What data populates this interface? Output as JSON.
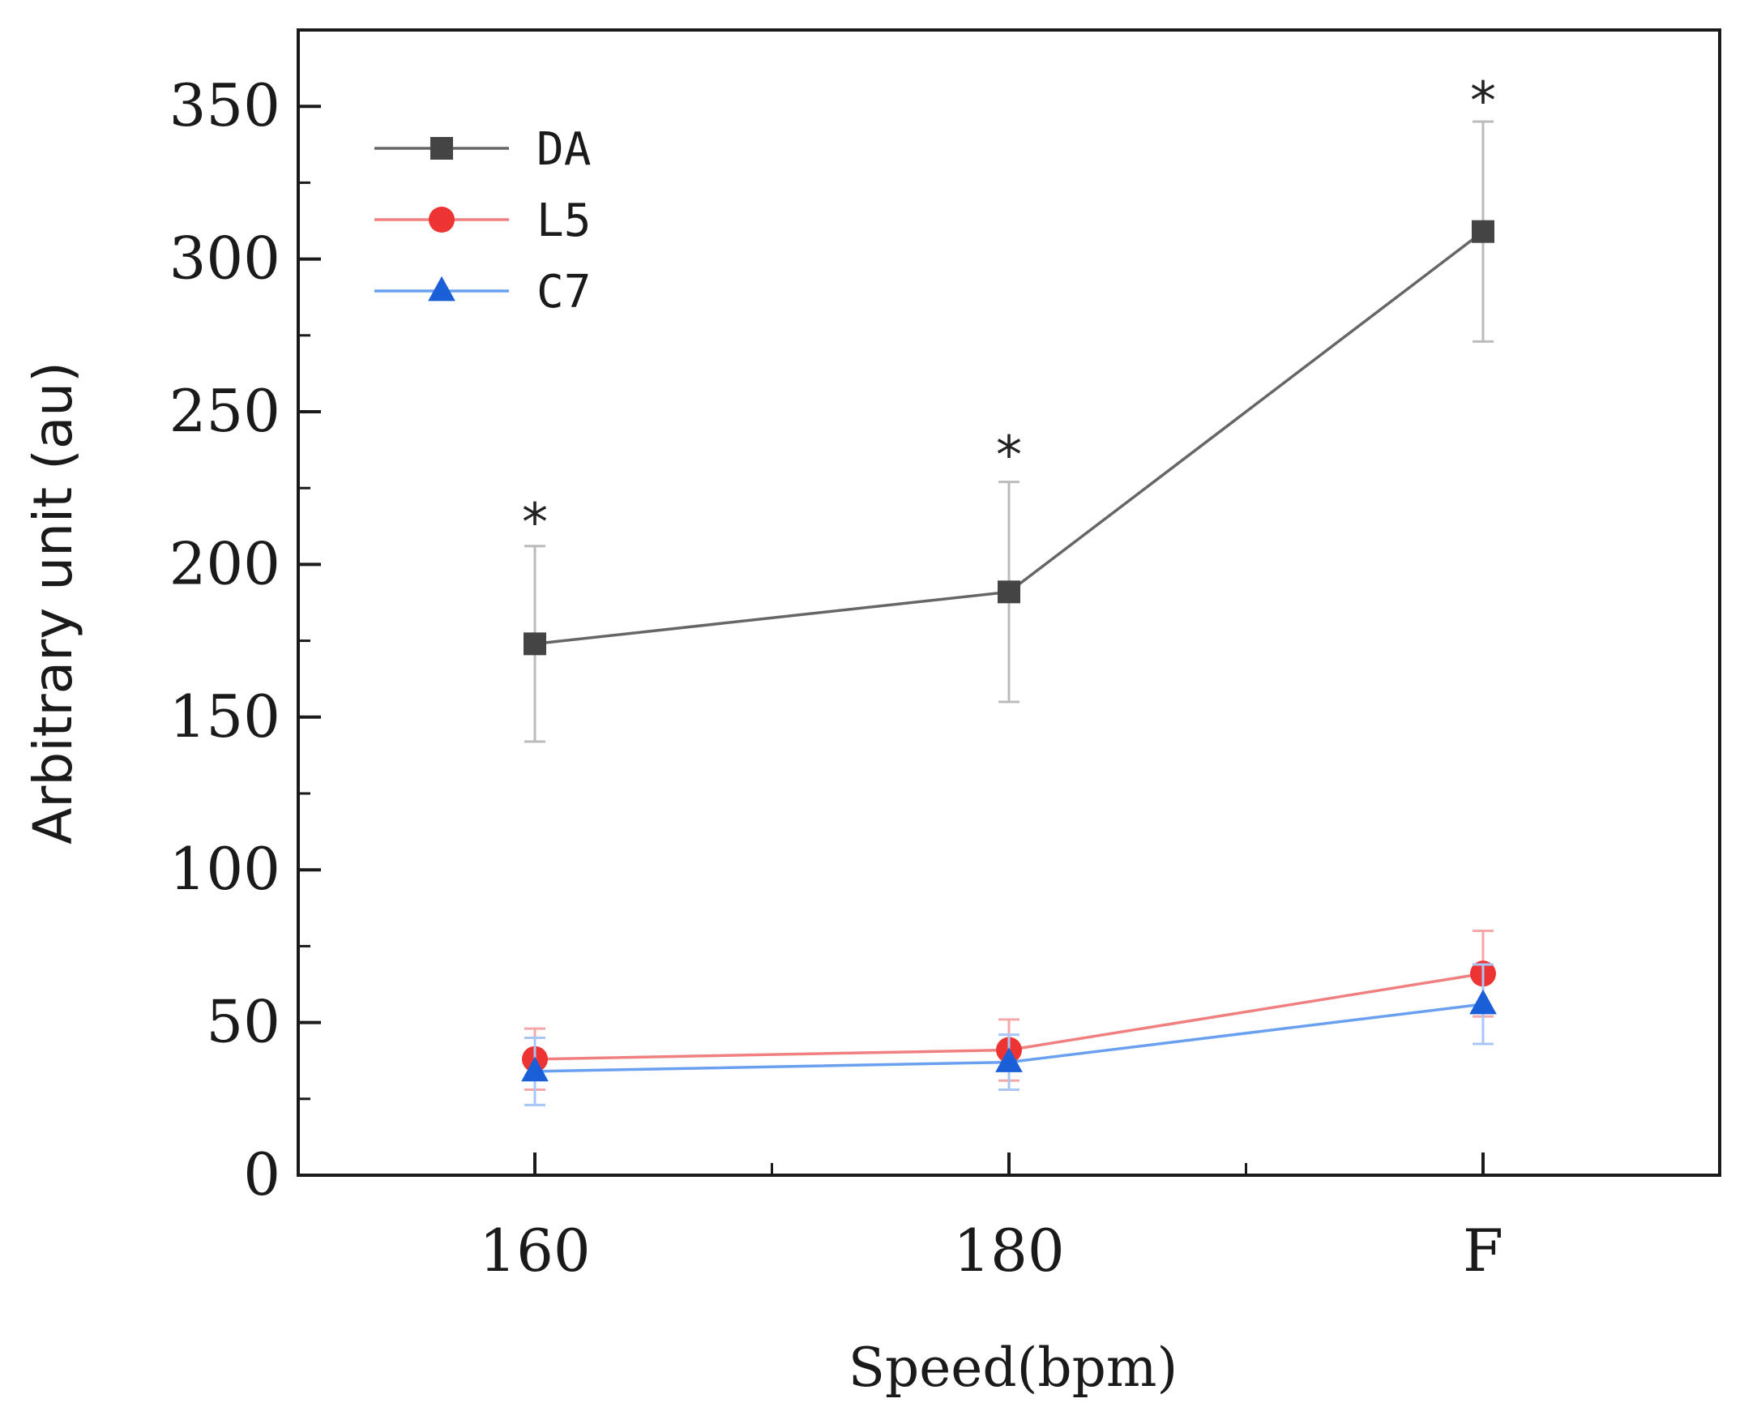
{
  "chart_data": {
    "type": "line",
    "title": "",
    "xlabel": "Speed(bpm)",
    "ylabel": "Arbitrary unit (au)",
    "categories": [
      "160",
      "180",
      "F"
    ],
    "ylim": [
      0,
      375
    ],
    "yticks": [
      0,
      50,
      100,
      150,
      200,
      250,
      300,
      350
    ],
    "ytick_labels": [
      "0",
      "50",
      "100",
      "150",
      "200",
      "250",
      "300",
      "350"
    ],
    "grid": false,
    "legend_position": "top-left",
    "series": [
      {
        "name": "DA",
        "marker": "square",
        "color": "#444444",
        "line_color": "#666666",
        "err_color": "#bbbbbb",
        "values": [
          174,
          191,
          309
        ],
        "errors": [
          32,
          36,
          36
        ]
      },
      {
        "name": "L5",
        "marker": "circle",
        "color": "#ee3333",
        "line_color": "#f08080",
        "err_color": "#f5a8a8",
        "values": [
          38,
          41,
          66
        ],
        "errors": [
          10,
          10,
          14
        ]
      },
      {
        "name": "C7",
        "marker": "triangle",
        "color": "#1a5fd8",
        "line_color": "#6aa0f0",
        "err_color": "#a8c6f5",
        "values": [
          34,
          37,
          56
        ],
        "errors": [
          11,
          9,
          13
        ]
      }
    ],
    "annotations": [
      {
        "text": "*",
        "category": "160",
        "value": 218
      },
      {
        "text": "*",
        "category": "180",
        "value": 240
      },
      {
        "text": "*",
        "category": "F",
        "value": 356
      }
    ]
  }
}
